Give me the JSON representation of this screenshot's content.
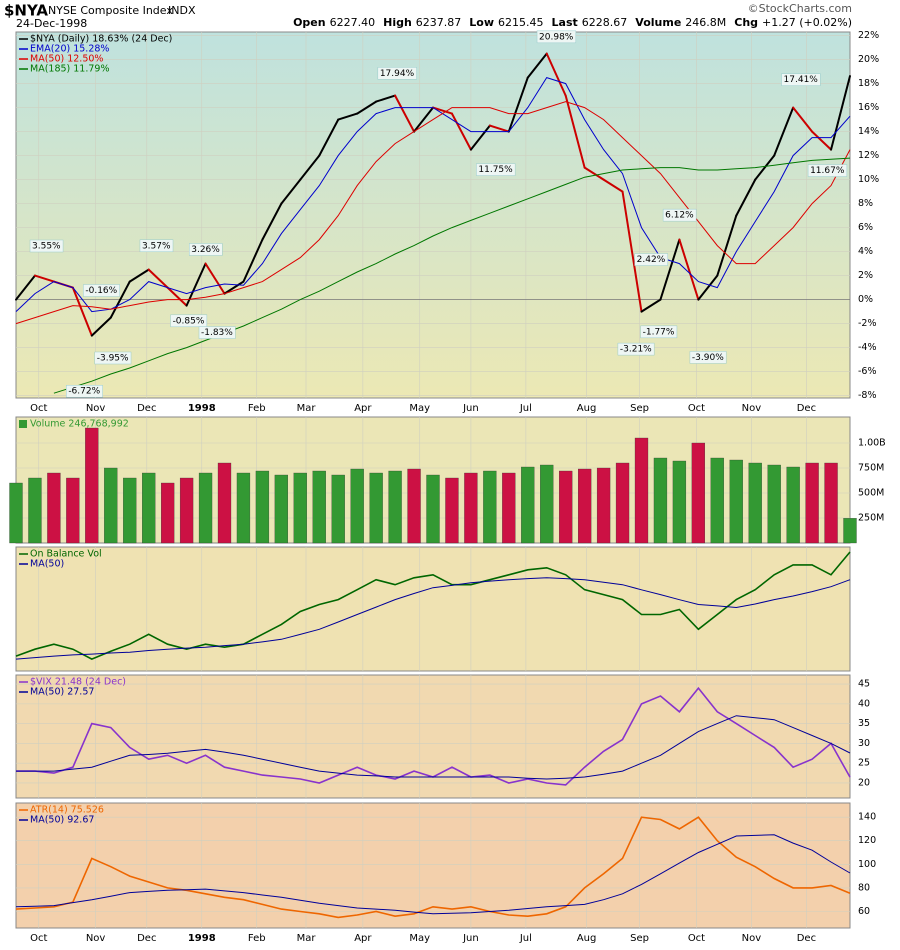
{
  "header": {
    "symbol": "$NYA",
    "name": "NYSE Composite Index",
    "exchange": "INDX",
    "date": "24-Dec-1998",
    "credit": "©StockCharts.com",
    "quote": [
      {
        "label": "Open",
        "value": "6227.40"
      },
      {
        "label": "High",
        "value": "6237.87"
      },
      {
        "label": "Low",
        "value": "6215.45"
      },
      {
        "label": "Last",
        "value": "6228.67"
      },
      {
        "label": "Volume",
        "value": "246.8M"
      },
      {
        "label": "Chg",
        "value": "+1.27 (+0.02%)"
      }
    ]
  },
  "chart_data": [
    {
      "type": "line",
      "xlim": [
        0,
        44
      ],
      "ylim": [
        -8.2,
        22.3
      ],
      "grid": true,
      "xticks": [
        {
          "value": 1.2,
          "label": "Oct"
        },
        {
          "value": 4.2,
          "label": "Nov"
        },
        {
          "value": 6.9,
          "label": "Dec"
        },
        {
          "value": 9.8,
          "label": "1998"
        },
        {
          "value": 12.7,
          "label": "Feb"
        },
        {
          "value": 15.3,
          "label": "Mar"
        },
        {
          "value": 18.3,
          "label": "Apr"
        },
        {
          "value": 21.3,
          "label": "May"
        },
        {
          "value": 24,
          "label": "Jun"
        },
        {
          "value": 26.9,
          "label": "Jul"
        },
        {
          "value": 30.1,
          "label": "Aug"
        },
        {
          "value": 32.9,
          "label": "Sep"
        },
        {
          "value": 35.9,
          "label": "Oct"
        },
        {
          "value": 38.8,
          "label": "Nov"
        },
        {
          "value": 41.7,
          "label": "Dec"
        }
      ],
      "yticks": [
        {
          "value": -8,
          "label": "-8%"
        },
        {
          "value": -6,
          "label": "-6%"
        },
        {
          "value": -4,
          "label": "-4%"
        },
        {
          "value": -2,
          "label": "-2%"
        },
        {
          "value": 0,
          "label": "0%"
        },
        {
          "value": 2,
          "label": "2%"
        },
        {
          "value": 4,
          "label": "4%"
        },
        {
          "value": 6,
          "label": "6%"
        },
        {
          "value": 8,
          "label": "8%"
        },
        {
          "value": 10,
          "label": "10%"
        },
        {
          "value": 12,
          "label": "12%"
        },
        {
          "value": 14,
          "label": "14%"
        },
        {
          "value": 16,
          "label": "16%"
        },
        {
          "value": 18,
          "label": "18%"
        },
        {
          "value": 20,
          "label": "20%"
        },
        {
          "value": 22,
          "label": "22%"
        }
      ],
      "series": [
        {
          "name": "$NYA (Daily) 18.63% (24 Dec)",
          "color": "#000000",
          "colors": {
            "up": "#000000",
            "down": "#cc0000"
          },
          "values": [
            0,
            2,
            1.5,
            1,
            -3,
            -1.5,
            1.5,
            2.5,
            1,
            -0.5,
            3,
            0.5,
            1.5,
            5,
            8,
            10,
            12,
            15,
            15.5,
            16.5,
            17,
            14,
            16,
            15.5,
            12.5,
            14.5,
            14,
            18.5,
            20.5,
            17,
            11,
            10,
            9,
            -1,
            0,
            5,
            0,
            2,
            7,
            10,
            12,
            16,
            14,
            12.5,
            18.63
          ]
        },
        {
          "name": "EMA(20) 15.28%",
          "color": "#0000cc",
          "values": [
            -1,
            0.5,
            1.5,
            1,
            -1,
            -0.8,
            0,
            1.5,
            1,
            0.5,
            1,
            1.3,
            1.2,
            3,
            5.5,
            7.5,
            9.5,
            12,
            14,
            15.5,
            16,
            16,
            16,
            15,
            14,
            14,
            14,
            16,
            18.5,
            18,
            15,
            12.5,
            10.5,
            6,
            3.5,
            3,
            1.5,
            1,
            4,
            6.5,
            9,
            12,
            13.5,
            13.5,
            15.28
          ]
        },
        {
          "name": "MA(50) 12.50%",
          "color": "#dd0000",
          "values": [
            -2,
            -1.5,
            -1,
            -0.5,
            -0.6,
            -0.8,
            -0.5,
            -0.2,
            0,
            0,
            0.2,
            0.5,
            1,
            1.5,
            2.5,
            3.5,
            5,
            7,
            9.5,
            11.5,
            13,
            14,
            15,
            16,
            16,
            16,
            15.5,
            15.5,
            16,
            16.5,
            16,
            15,
            13.5,
            12,
            10.5,
            8.5,
            6.5,
            4.5,
            3,
            3,
            4.5,
            6,
            8,
            9.5,
            12.5
          ]
        },
        {
          "name": "MA(185) 11.79%",
          "color": "#007700",
          "values": [
            null,
            null,
            -7.8,
            -7.3,
            -6.8,
            -6.2,
            -5.7,
            -5.1,
            -4.5,
            -4,
            -3.4,
            -2.8,
            -2.2,
            -1.5,
            -0.8,
            0,
            0.7,
            1.5,
            2.3,
            3,
            3.8,
            4.5,
            5.3,
            6,
            6.6,
            7.2,
            7.8,
            8.4,
            9,
            9.6,
            10.2,
            10.5,
            10.8,
            10.9,
            11,
            11,
            10.8,
            10.8,
            10.9,
            11,
            11.2,
            11.4,
            11.6,
            11.7,
            11.79
          ]
        }
      ],
      "annotations": [
        {
          "x": 1.6,
          "value": 3.55,
          "label": "3.55%",
          "pos": "above"
        },
        {
          "x": 4.5,
          "value": -0.16,
          "label": "-0.16%",
          "pos": "above"
        },
        {
          "x": 3.6,
          "value": -6.72,
          "label": "-6.72%",
          "pos": "below"
        },
        {
          "x": 5.1,
          "value": -3.95,
          "label": "-3.95%",
          "pos": "below"
        },
        {
          "x": 7.4,
          "value": 3.57,
          "label": "3.57%",
          "pos": "above"
        },
        {
          "x": 10,
          "value": 3.26,
          "label": "3.26%",
          "pos": "above"
        },
        {
          "x": 9.1,
          "value": -0.85,
          "label": "-0.85%",
          "pos": "below"
        },
        {
          "x": 10.6,
          "value": -1.83,
          "label": "-1.83%",
          "pos": "below"
        },
        {
          "x": 20.1,
          "value": 17.94,
          "label": "17.94%",
          "pos": "above"
        },
        {
          "x": 25.3,
          "value": 11.75,
          "label": "11.75%",
          "pos": "below"
        },
        {
          "x": 28.5,
          "value": 20.98,
          "label": "20.98%",
          "pos": "above"
        },
        {
          "x": 33.5,
          "value": 2.42,
          "label": "2.42%",
          "pos": "above"
        },
        {
          "x": 35,
          "value": 6.12,
          "label": "6.12%",
          "pos": "above"
        },
        {
          "x": 33.9,
          "value": -1.77,
          "label": "-1.77%",
          "pos": "below"
        },
        {
          "x": 32.7,
          "value": -3.21,
          "label": "-3.21%",
          "pos": "below"
        },
        {
          "x": 36.5,
          "value": -3.9,
          "label": "-3.90%",
          "pos": "below"
        },
        {
          "x": 41.4,
          "value": 17.41,
          "label": "17.41%",
          "pos": "above"
        },
        {
          "x": 42.8,
          "value": 11.67,
          "label": "11.67%",
          "pos": "below"
        }
      ]
    },
    {
      "type": "bar",
      "xlim": [
        0,
        44
      ],
      "ylim": [
        0,
        1260000000
      ],
      "yticks": [
        {
          "value": 250000000,
          "label": "250M"
        },
        {
          "value": 500000000,
          "label": "500M"
        },
        {
          "value": 750000000,
          "label": "750M"
        },
        {
          "value": 1000000000,
          "label": "1.00B"
        }
      ],
      "up_color": "#339933",
      "down_color": "#cc1144",
      "series": [
        {
          "name": "Volume 246,768,992",
          "color": "#339933",
          "values": [
            600000000,
            650000000,
            700000000,
            650000000,
            1150000000,
            750000000,
            650000000,
            700000000,
            600000000,
            650000000,
            700000000,
            800000000,
            700000000,
            720000000,
            680000000,
            700000000,
            720000000,
            680000000,
            740000000,
            700000000,
            720000000,
            740000000,
            680000000,
            650000000,
            700000000,
            720000000,
            700000000,
            760000000,
            780000000,
            720000000,
            740000000,
            750000000,
            800000000,
            1050000000,
            850000000,
            820000000,
            1000000000,
            850000000,
            830000000,
            800000000,
            780000000,
            760000000,
            800000000,
            800000000,
            246768992
          ]
        }
      ]
    },
    {
      "type": "line",
      "xlim": [
        0,
        44
      ],
      "ylim": [
        0,
        100
      ],
      "series": [
        {
          "name": "On Balance Vol",
          "color": "#006600",
          "values": [
            12,
            17.6,
            21.6,
            17.6,
            9.6,
            16,
            21.6,
            29.6,
            21.6,
            17.6,
            21.6,
            19.2,
            21.6,
            29.6,
            37.6,
            48,
            53.6,
            57.6,
            65.6,
            73.6,
            69.6,
            75.2,
            77.6,
            69.6,
            69.6,
            73.6,
            77.6,
            81.6,
            83.2,
            77.6,
            65.6,
            61.6,
            57.6,
            45.6,
            45.6,
            49.6,
            33.6,
            45.6,
            57.6,
            65.6,
            77.6,
            85.6,
            85.6,
            77.6,
            96
          ]
        },
        {
          "name": "MA(50)",
          "color": "#000099",
          "values": [
            9.6,
            10.8,
            12,
            13,
            13.6,
            14.5,
            15.2,
            16.5,
            17.6,
            18.5,
            19.2,
            20.5,
            21.6,
            23.5,
            25.6,
            29.5,
            33.6,
            39.5,
            45.6,
            51.5,
            57.6,
            62.5,
            67.2,
            69,
            71.2,
            72.5,
            73.6,
            74.5,
            75.2,
            74.5,
            73.6,
            71.5,
            69.6,
            65.5,
            61.6,
            57.5,
            53.6,
            52.5,
            51.2,
            54,
            57.6,
            60.5,
            64,
            68,
            73.6
          ]
        }
      ]
    },
    {
      "type": "line",
      "xlim": [
        0,
        44
      ],
      "ylim": [
        16.2,
        47.3
      ],
      "yticks": [
        20,
        25,
        30,
        35,
        40,
        45
      ],
      "series": [
        {
          "name": "$VIX 21.48 (24 Dec)",
          "color": "#8833cc",
          "values": [
            23,
            23,
            22.5,
            24,
            35,
            34,
            29,
            26,
            27,
            25,
            27,
            24,
            23,
            22,
            21.5,
            21,
            20,
            22,
            24,
            22,
            21,
            23,
            21.5,
            24,
            21.5,
            22,
            20,
            21,
            20,
            19.5,
            24,
            28,
            31,
            40,
            42,
            38,
            44,
            38,
            35,
            32,
            29,
            24,
            26,
            30,
            21.48
          ]
        },
        {
          "name": "MA(50) 27.57",
          "color": "#000099",
          "values": [
            23,
            23,
            23,
            23.5,
            24,
            25.5,
            27,
            27.2,
            27.5,
            28,
            28.5,
            27.8,
            27,
            26,
            25,
            24,
            23,
            22.5,
            22,
            21.8,
            21.5,
            21.5,
            21.5,
            21.5,
            21.5,
            21.5,
            21.5,
            21.2,
            21,
            21.2,
            21.5,
            22.2,
            23,
            25,
            27,
            30,
            33,
            35,
            37,
            36.5,
            36,
            34,
            32,
            30,
            27.57
          ]
        }
      ]
    },
    {
      "type": "line",
      "xlim": [
        0,
        44
      ],
      "ylim": [
        46,
        152
      ],
      "yticks": [
        60,
        80,
        100,
        120,
        140
      ],
      "xticks": [
        {
          "value": 1.2,
          "label": "Oct"
        },
        {
          "value": 4.2,
          "label": "Nov"
        },
        {
          "value": 6.9,
          "label": "Dec"
        },
        {
          "value": 9.8,
          "label": "1998"
        },
        {
          "value": 12.7,
          "label": "Feb"
        },
        {
          "value": 15.3,
          "label": "Mar"
        },
        {
          "value": 18.3,
          "label": "Apr"
        },
        {
          "value": 21.3,
          "label": "May"
        },
        {
          "value": 24,
          "label": "Jun"
        },
        {
          "value": 26.9,
          "label": "Jul"
        },
        {
          "value": 30.1,
          "label": "Aug"
        },
        {
          "value": 32.9,
          "label": "Sep"
        },
        {
          "value": 35.9,
          "label": "Oct"
        },
        {
          "value": 38.8,
          "label": "Nov"
        },
        {
          "value": 41.7,
          "label": "Dec"
        }
      ],
      "series": [
        {
          "name": "ATR(14) 75.526",
          "color": "#ee6600",
          "values": [
            62,
            63,
            64,
            68,
            105,
            98,
            90,
            85,
            80,
            78,
            75,
            72,
            70,
            66,
            62,
            60,
            58,
            55,
            57,
            60,
            56,
            58,
            64,
            62,
            64,
            60,
            57,
            56,
            58,
            64,
            80,
            92,
            105,
            140,
            138,
            130,
            140,
            120,
            106,
            98,
            88,
            80,
            80,
            82,
            75.526
          ]
        },
        {
          "name": "MA(50) 92.67",
          "color": "#000099",
          "values": [
            64,
            64.5,
            65,
            67.5,
            70,
            73,
            76,
            77,
            78,
            78.5,
            79,
            77.5,
            76,
            74,
            72,
            69.5,
            67,
            65,
            63,
            62,
            61,
            59.5,
            58,
            58.5,
            59,
            60,
            61,
            62.5,
            64,
            65,
            66,
            70,
            75,
            83,
            92,
            101,
            110,
            117,
            124,
            124.5,
            125,
            118,
            112,
            102,
            92.67
          ]
        }
      ]
    }
  ]
}
